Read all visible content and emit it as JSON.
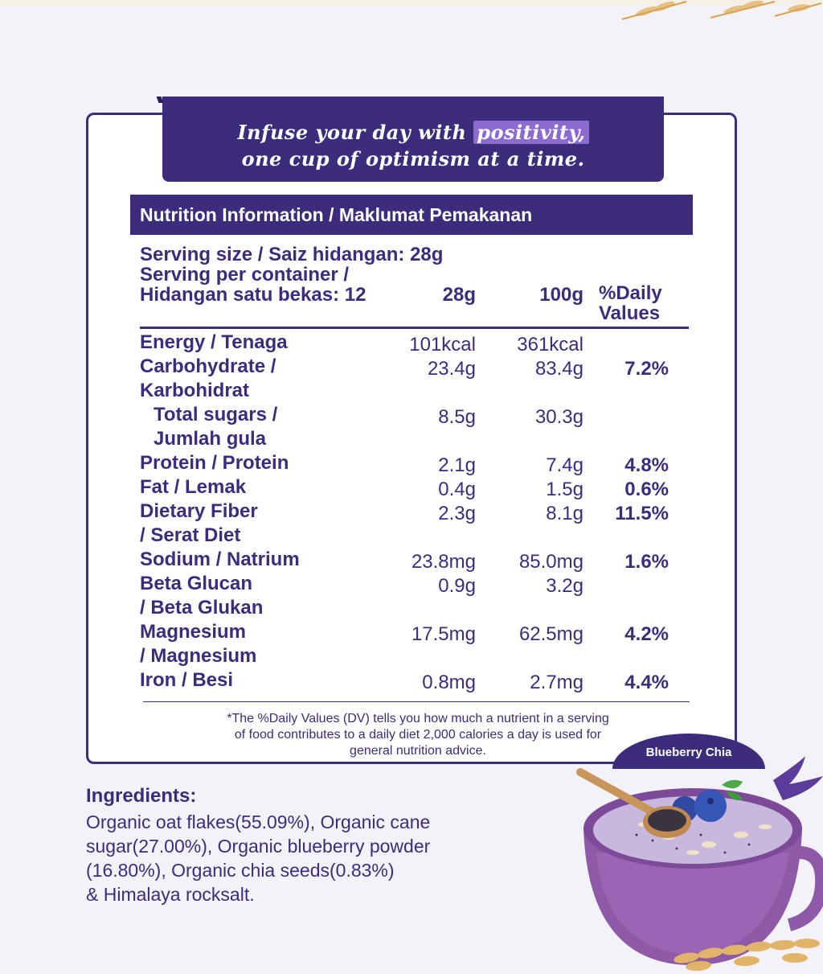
{
  "tagline": {
    "line1_pre": "Infuse your day with ",
    "line1_highlight": "positivity,",
    "line2": "one cup of optimism at a time."
  },
  "nutrition": {
    "header": "Nutrition Information  / Maklumat Pemakanan",
    "serving_size": "Serving size / Saiz hidangan: 28g",
    "serving_per_container_1": "Serving per container /",
    "serving_per_container_2": "Hidangan satu bekas: 12",
    "col_28g": "28g",
    "col_100g": "100g",
    "col_dv_1": "%Daily",
    "col_dv_2": "Values",
    "rows": [
      {
        "label1": "Energy / Tenaga",
        "label2": "",
        "v28": "101kcal",
        "v100": "361kcal",
        "dv": ""
      },
      {
        "label1": "Carbohydrate /",
        "label2": "Karbohidrat",
        "v28": "23.4g",
        "v100": "83.4g",
        "dv": "7.2%"
      },
      {
        "label1": "Total sugars /",
        "label2": "Jumlah gula",
        "v28": "8.5g",
        "v100": "30.3g",
        "dv": ""
      },
      {
        "label1": "Protein / Protein",
        "label2": "",
        "v28": "2.1g",
        "v100": "7.4g",
        "dv": "4.8%"
      },
      {
        "label1": "Fat / Lemak",
        "label2": "",
        "v28": "0.4g",
        "v100": "1.5g",
        "dv": "0.6%"
      },
      {
        "label1": "Dietary Fiber",
        "label2": "/ Serat Diet",
        "v28": "2.3g",
        "v100": "8.1g",
        "dv": "11.5%"
      },
      {
        "label1": "Sodium / Natrium",
        "label2": "",
        "v28": "23.8mg",
        "v100": "85.0mg",
        "dv": "1.6%"
      },
      {
        "label1": "Beta Glucan",
        "label2": "/ Beta Glukan",
        "v28": "0.9g",
        "v100": "3.2g",
        "dv": ""
      },
      {
        "label1": "Magnesium",
        "label2": "/ Magnesium",
        "v28": "17.5mg",
        "v100": "62.5mg",
        "dv": "4.2%"
      },
      {
        "label1": "Iron / Besi",
        "label2": "",
        "v28": "0.8mg",
        "v100": "2.7mg",
        "dv": "4.4%"
      }
    ],
    "footnote_1": "*The %Daily Values (DV) tells you how much a nutrient in a serving",
    "footnote_2": "of food contributes to a daily diet 2,000 calories a day is used for",
    "footnote_3": "general nutrition advice."
  },
  "ingredients": {
    "title": "Ingredients:",
    "line1": "Organic oat flakes(55.09%), Organic cane",
    "line2": "sugar(27.00%), Organic blueberry powder",
    "line3": "(16.80%), Organic chia seeds(0.83%)",
    "line4": "& Himalaya rocksalt."
  },
  "product": {
    "badge": "Blueberry Chia"
  },
  "colors": {
    "brand_purple": "#3d2c7b",
    "highlight": "#8b6bd0",
    "background": "#f3f2f9"
  }
}
